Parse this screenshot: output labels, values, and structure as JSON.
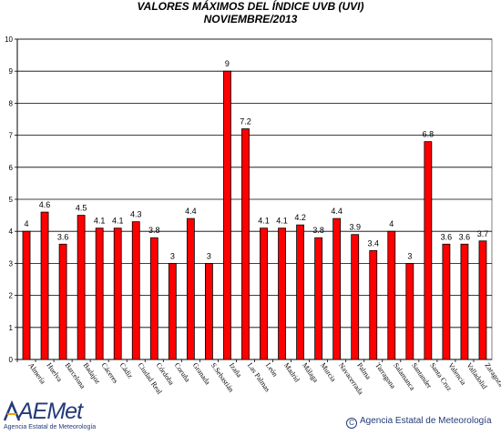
{
  "chart_data": {
    "type": "bar",
    "title": "VALORES MÁXIMOS DEL ÍNDICE UVB (UVI)",
    "subtitle": "NOVIEMBRE/2013",
    "xlabel": "",
    "ylabel": "",
    "ylim": [
      0,
      10
    ],
    "yticks": [
      "0",
      "1",
      "2",
      "3",
      "4",
      "5",
      "6",
      "7",
      "8",
      "9",
      "10"
    ],
    "grid": true,
    "bar_color": "#ff0000",
    "categories": [
      "Almería",
      "Huelva",
      "Barcelona",
      "Badajoz",
      "Cáceres",
      "Cádiz",
      "Ciudad Real",
      "Córdoba",
      "Coruña",
      "Granada",
      "S.Sebastián",
      "Izaña",
      "Las Palmas",
      "León",
      "Madrid",
      "Málaga",
      "Murcia",
      "Navacerrada",
      "Palma",
      "Tarragona",
      "Salamanca",
      "Santander",
      "Santa Cruz",
      "Valencia",
      "Valladolid",
      "Zaragoza"
    ],
    "values": [
      4,
      4.6,
      3.6,
      4.5,
      4.1,
      4.1,
      4.3,
      3.8,
      3,
      4.4,
      3,
      9,
      7.2,
      4.1,
      4.1,
      4.2,
      3.8,
      4.4,
      3.9,
      3.4,
      4,
      3,
      6.8,
      3.6,
      3.6,
      3.7
    ],
    "value_labels": [
      "4",
      "4.6",
      "3.6",
      "4.5",
      "4.1",
      "4.1",
      "4.3",
      "3.8",
      "3",
      "4.4",
      "3",
      "9",
      "7.2",
      "4.1",
      "4.1",
      "4.2",
      "3.8",
      "4.4",
      "3.9",
      "3.4",
      "4",
      "3",
      "6.8",
      "3.6",
      "3.6",
      "3.7"
    ]
  },
  "footer": {
    "logo_text": "AEMet",
    "logo_subtitle": "Agencia Estatal de Meteorología",
    "copyright_symbol": "C",
    "copyright_text": "Agencia Estatal de Meteorología"
  }
}
